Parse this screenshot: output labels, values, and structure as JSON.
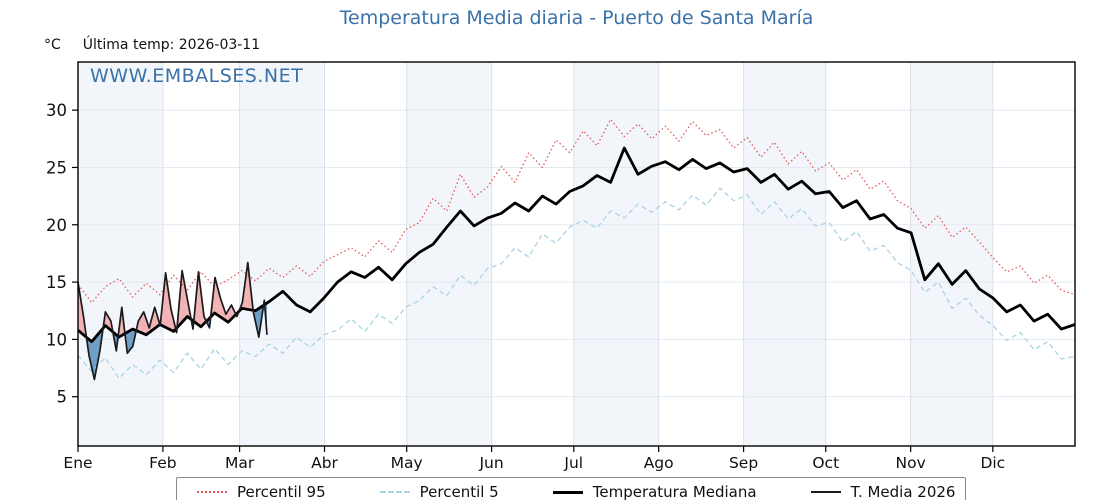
{
  "title": "Temperatura Media diaria - Puerto de Santa María",
  "units_label": "°C",
  "last_temp_label": "Última temp: 2026-03-11",
  "watermark": "WWW.EMBALSES.NET",
  "colors": {
    "title": "#3a72a8",
    "watermark": "#3a72a8",
    "band": "#f2f6fb",
    "grid_h": "#e4e9f0",
    "grid_v": "#d9e2ec",
    "axis": "#000000",
    "p95": "#e25b5b",
    "p5": "#a9d3e5",
    "median": "#000000",
    "t2026": "#1a1a1a",
    "fill_above": "#f2b3b6",
    "fill_below": "#6f9ec6"
  },
  "legend": [
    {
      "label": "Percentil 95"
    },
    {
      "label": "Percentil 5"
    },
    {
      "label": "Temperatura Mediana"
    },
    {
      "label": "T. Media 2026"
    }
  ],
  "chart_data": {
    "type": "line",
    "title": "Temperatura Media diaria - Puerto de Santa María",
    "ylabel": "°C",
    "annotation": "Última temp: 2026-03-11",
    "grid": true,
    "legend_position": "bottom",
    "x_axis": {
      "tick_labels": [
        "Ene",
        "Feb",
        "Mar",
        "Abr",
        "May",
        "Jun",
        "Jul",
        "Ago",
        "Sep",
        "Oct",
        "Nov",
        "Dic"
      ],
      "month_start_days": [
        1,
        32,
        60,
        91,
        121,
        152,
        182,
        213,
        244,
        274,
        305,
        335
      ],
      "days_in_year": 365,
      "shaded_months_alternate": true
    },
    "y_axis": {
      "ticks": [
        5,
        10,
        15,
        20,
        25,
        30
      ],
      "ylim": [
        0.7,
        34.2
      ]
    },
    "series": [
      {
        "name": "Percentil 95",
        "style": "dotted",
        "color": "#e25b5b",
        "width": 1.3,
        "x_start_day": 1,
        "x_end_day": 365,
        "values": [
          14.8,
          13.2,
          14.6,
          15.3,
          13.7,
          14.9,
          13.9,
          15.6,
          14.3,
          15.9,
          14.6,
          15.2,
          16.0,
          15.1,
          16.2,
          15.4,
          16.4,
          15.5,
          16.8,
          17.4,
          18.0,
          17.2,
          18.6,
          17.6,
          19.6,
          20.2,
          22.3,
          21.2,
          24.4,
          22.4,
          23.3,
          25.1,
          23.7,
          26.3,
          25.0,
          27.4,
          26.3,
          28.2,
          26.9,
          29.2,
          27.7,
          28.8,
          27.5,
          28.6,
          27.3,
          29.0,
          27.8,
          28.3,
          26.7,
          27.6,
          25.9,
          27.2,
          25.3,
          26.4,
          24.7,
          25.4,
          23.9,
          24.8,
          23.1,
          23.8,
          22.1,
          21.4,
          19.7,
          20.8,
          18.9,
          19.8,
          18.5,
          17.1,
          15.9,
          16.4,
          14.9,
          15.6,
          14.3,
          13.9
        ]
      },
      {
        "name": "Percentil 5",
        "style": "dashed",
        "color": "#a9d3e5",
        "width": 1.3,
        "x_start_day": 1,
        "x_end_day": 365,
        "values": [
          8.6,
          7.2,
          8.4,
          6.6,
          7.8,
          6.9,
          8.2,
          7.1,
          8.8,
          7.4,
          9.2,
          7.8,
          9.0,
          8.5,
          9.6,
          8.8,
          10.2,
          9.3,
          10.4,
          10.8,
          11.8,
          10.7,
          12.2,
          11.4,
          12.8,
          13.4,
          14.6,
          13.8,
          15.6,
          14.7,
          16.2,
          16.6,
          18.0,
          17.2,
          19.2,
          18.4,
          19.8,
          20.4,
          19.7,
          21.2,
          20.6,
          21.8,
          21.1,
          22.0,
          21.3,
          22.6,
          21.7,
          23.2,
          22.1,
          22.6,
          20.9,
          22.0,
          20.5,
          21.4,
          19.9,
          20.2,
          18.5,
          19.4,
          17.7,
          18.2,
          16.7,
          16.0,
          14.1,
          15.0,
          12.7,
          13.6,
          12.1,
          11.2,
          9.9,
          10.6,
          9.1,
          9.8,
          8.3,
          8.5
        ]
      },
      {
        "name": "Temperatura Mediana",
        "style": "solid",
        "color": "#000000",
        "width": 2.8,
        "x_start_day": 1,
        "x_end_day": 365,
        "values": [
          10.8,
          9.8,
          11.2,
          10.2,
          10.9,
          10.4,
          11.3,
          10.7,
          12.0,
          11.1,
          12.3,
          11.5,
          12.7,
          12.5,
          13.3,
          14.2,
          13.0,
          12.4,
          13.6,
          15.0,
          15.9,
          15.4,
          16.3,
          15.2,
          16.6,
          17.6,
          18.3,
          19.8,
          21.2,
          19.9,
          20.6,
          21.0,
          21.9,
          21.2,
          22.5,
          21.8,
          22.9,
          23.4,
          24.3,
          23.7,
          26.7,
          24.4,
          25.1,
          25.5,
          24.8,
          25.7,
          24.9,
          25.4,
          24.6,
          24.9,
          23.7,
          24.4,
          23.1,
          23.8,
          22.7,
          22.9,
          21.5,
          22.1,
          20.5,
          20.9,
          19.7,
          19.3,
          15.2,
          16.6,
          14.8,
          16.0,
          14.4,
          13.6,
          12.4,
          13.0,
          11.6,
          12.2,
          10.9,
          11.3
        ]
      },
      {
        "name": "T. Media 2026",
        "style": "solid",
        "color": "#1a1a1a",
        "width": 1.7,
        "days": [
          1,
          3,
          5,
          7,
          9,
          11,
          13,
          15,
          17,
          19,
          21,
          23,
          25,
          27,
          29,
          31,
          33,
          35,
          37,
          39,
          41,
          43,
          45,
          47,
          49,
          51,
          53,
          55,
          57,
          59,
          61,
          63,
          65,
          67,
          69,
          70
        ],
        "values": [
          15.0,
          12.0,
          8.6,
          6.5,
          9.0,
          12.4,
          11.6,
          9.0,
          12.8,
          8.8,
          9.4,
          11.6,
          12.4,
          11.0,
          12.8,
          11.2,
          15.8,
          12.6,
          10.6,
          16.0,
          13.4,
          10.9,
          15.9,
          12.0,
          11.0,
          15.4,
          13.6,
          12.2,
          13.0,
          12.0,
          13.2,
          16.7,
          12.4,
          10.2,
          13.4,
          10.4
        ]
      }
    ],
    "fills": {
      "description": "T. Media 2026 vs Temperatura Mediana",
      "above_median_color": "#f2b3b6",
      "below_median_color": "#6f9ec6"
    }
  }
}
